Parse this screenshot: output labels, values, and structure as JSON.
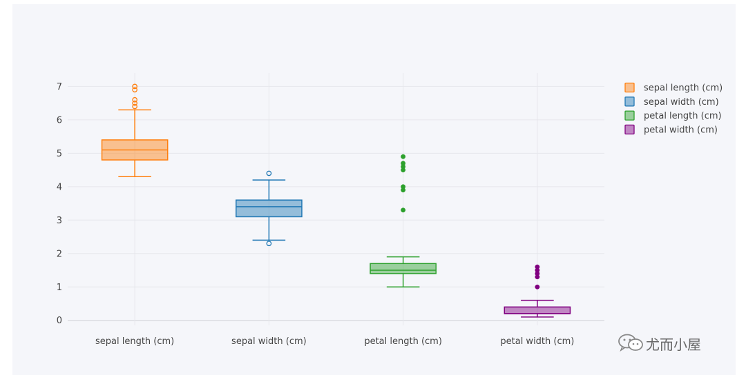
{
  "chart_data": {
    "type": "box",
    "title": "",
    "xlabel": "",
    "ylabel": "",
    "ylim": [
      -0.15,
      7.4
    ],
    "y_ticks": [
      0,
      1,
      2,
      3,
      4,
      5,
      6,
      7
    ],
    "grid": true,
    "legend_position": "top-right",
    "categories": [
      "sepal length (cm)",
      "sepal width (cm)",
      "petal length (cm)",
      "petal width (cm)"
    ],
    "series": [
      {
        "name": "sepal length (cm)",
        "color": "#ff7f0e",
        "outlier_style": "open",
        "whisker_low": 4.3,
        "q1": 4.8,
        "median": 5.1,
        "q3": 5.4,
        "whisker_high": 6.3,
        "outliers": [
          6.4,
          6.5,
          6.6,
          6.9,
          7.0
        ]
      },
      {
        "name": "sepal width (cm)",
        "color": "#1f77b4",
        "outlier_style": "open",
        "whisker_low": 2.4,
        "q1": 3.1,
        "median": 3.4,
        "q3": 3.6,
        "whisker_high": 4.2,
        "outliers": [
          2.3,
          4.4
        ]
      },
      {
        "name": "petal length (cm)",
        "color": "#2ca02c",
        "outlier_style": "filled",
        "whisker_low": 1.0,
        "q1": 1.4,
        "median": 1.5,
        "q3": 1.7,
        "whisker_high": 1.9,
        "outliers": [
          3.3,
          3.9,
          4.0,
          4.5,
          4.6,
          4.7,
          4.9
        ]
      },
      {
        "name": "petal width (cm)",
        "color": "#800080",
        "outlier_style": "filled",
        "whisker_low": 0.1,
        "q1": 0.2,
        "median": 0.2,
        "q3": 0.4,
        "whisker_high": 0.6,
        "outliers": [
          1.0,
          1.3,
          1.4,
          1.5,
          1.6
        ]
      }
    ]
  },
  "watermark": {
    "text": "尤而小屋",
    "icon": "wechat-icon"
  }
}
